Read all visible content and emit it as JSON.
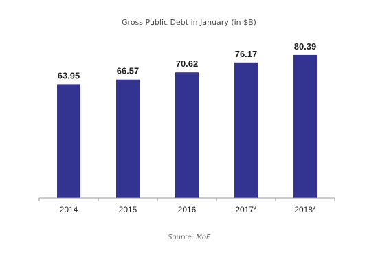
{
  "chart_data": {
    "type": "bar",
    "title": "Gross Public Debt in January (in $B)",
    "categories": [
      "2014",
      "2015",
      "2016",
      "2017*",
      "2018*"
    ],
    "values": [
      63.95,
      66.57,
      70.62,
      76.17,
      80.39
    ],
    "value_labels": [
      "63.95",
      "66.57",
      "70.62",
      "76.17",
      "80.39"
    ],
    "ylim": [
      0,
      90
    ],
    "grid": false,
    "legend": "none",
    "bar_color": "#333391",
    "axis_color": "#9a9a9a",
    "source": "Source: MoF"
  }
}
